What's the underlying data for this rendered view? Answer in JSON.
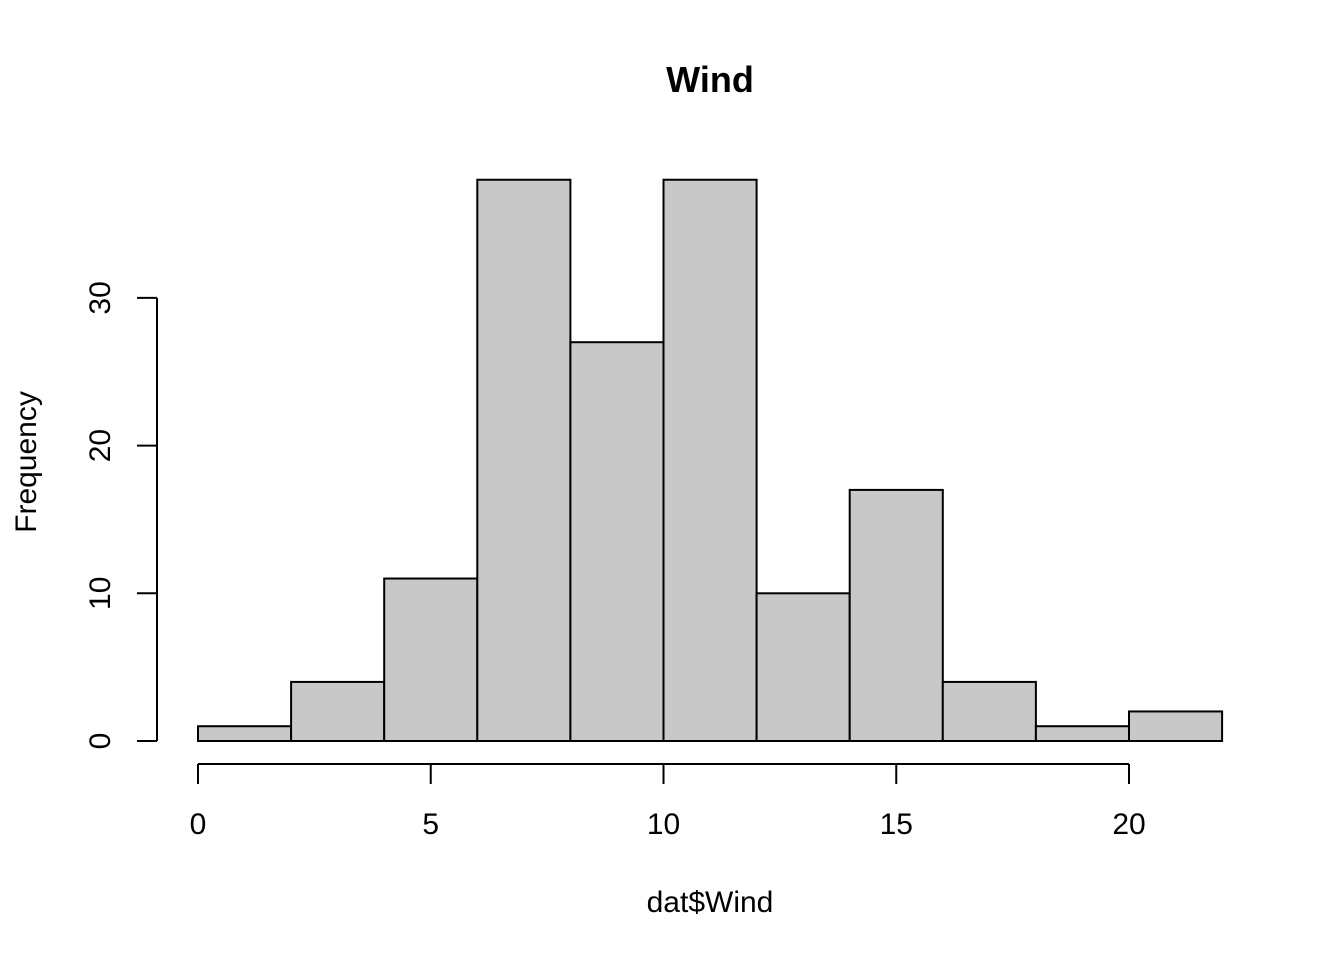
{
  "chart_data": {
    "type": "bar",
    "title": "Wind",
    "xlabel": "dat$Wind",
    "ylabel": "Frequency",
    "bins": [
      {
        "start": 0,
        "end": 2,
        "count": 1
      },
      {
        "start": 2,
        "end": 4,
        "count": 4
      },
      {
        "start": 4,
        "end": 6,
        "count": 11
      },
      {
        "start": 6,
        "end": 8,
        "count": 38
      },
      {
        "start": 8,
        "end": 10,
        "count": 27
      },
      {
        "start": 10,
        "end": 12,
        "count": 38
      },
      {
        "start": 12,
        "end": 14,
        "count": 10
      },
      {
        "start": 14,
        "end": 16,
        "count": 17
      },
      {
        "start": 16,
        "end": 18,
        "count": 4
      },
      {
        "start": 18,
        "end": 20,
        "count": 1
      },
      {
        "start": 20,
        "end": 22,
        "count": 2
      }
    ],
    "xticks": [
      0,
      5,
      10,
      15,
      20
    ],
    "yticks": [
      0,
      10,
      20,
      30
    ],
    "xlim": [
      0,
      22
    ],
    "ylim": [
      0,
      38
    ],
    "bar_color": "#c8c8c8",
    "grid": false,
    "legend": "none"
  }
}
